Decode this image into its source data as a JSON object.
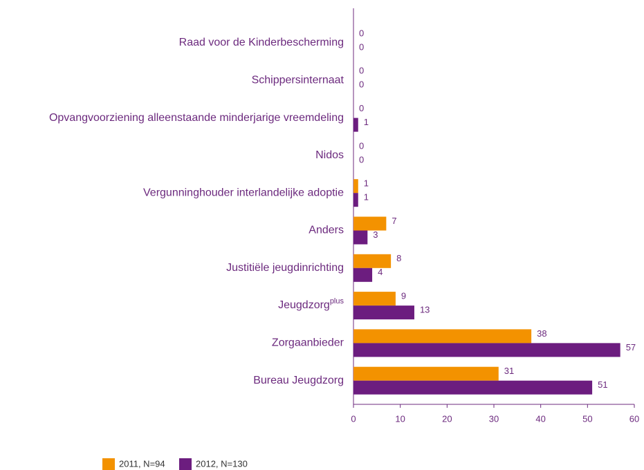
{
  "chart_data": {
    "type": "hbar",
    "categories": [
      "Raad voor de Kinderbescherming",
      "Schippersinternaat",
      "Opvangvoorziening alleenstaande minderjarige vreemdeling",
      "Nidos",
      "Vergunninghouder interlandelijke adoptie",
      "Anders",
      "Justitiële jeugdinrichting",
      {
        "text": "Jeugdzorg",
        "sup": "plus"
      },
      "Zorgaanbieder",
      "Bureau Jeugdzorg"
    ],
    "series": [
      {
        "name": "2011, N=94",
        "color": "#f39200",
        "values": [
          0,
          0,
          0,
          0,
          1,
          7,
          8,
          9,
          38,
          31
        ]
      },
      {
        "name": "2012, N=130",
        "color": "#6c1d7f",
        "values": [
          0,
          0,
          1,
          0,
          1,
          3,
          4,
          13,
          57,
          51
        ]
      }
    ],
    "xlim": [
      0,
      60
    ],
    "xticks": [
      0,
      10,
      20,
      30,
      40,
      50,
      60
    ],
    "grid": false,
    "legend": "bottom"
  }
}
